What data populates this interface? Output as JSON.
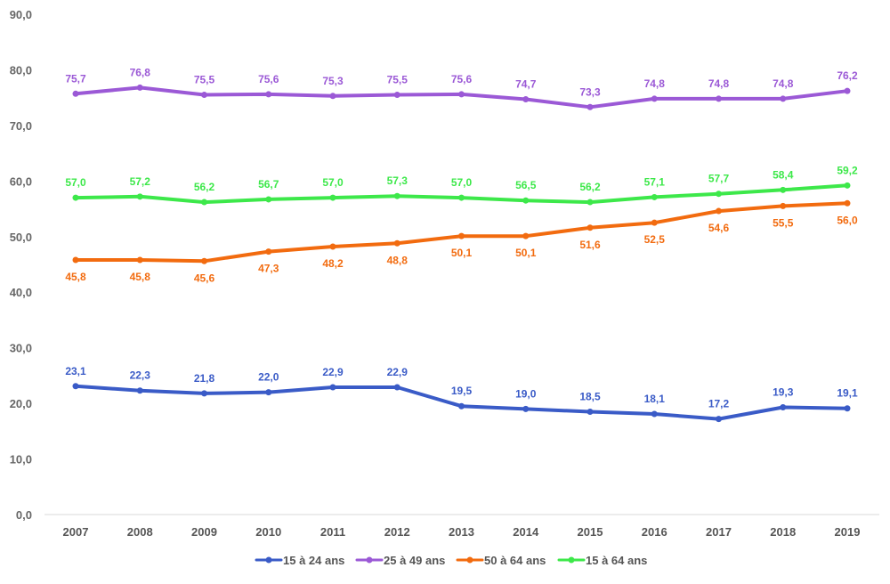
{
  "chart_data": {
    "type": "line",
    "title": "",
    "xlabel": "",
    "ylabel": "",
    "ylim": [
      0,
      90
    ],
    "yticks": [
      "0,0",
      "10,0",
      "20,0",
      "30,0",
      "40,0",
      "50,0",
      "60,0",
      "70,0",
      "80,0",
      "90,0"
    ],
    "x": [
      "2007",
      "2008",
      "2009",
      "2010",
      "2011",
      "2012",
      "2013",
      "2014",
      "2015",
      "2016",
      "2017",
      "2018",
      "2019"
    ],
    "legend_position": "bottom",
    "grid": false,
    "series": [
      {
        "name": "15 à 24 ans",
        "color": "#3a5bc7",
        "label_position": "above",
        "values": [
          23.1,
          22.3,
          21.8,
          22.0,
          22.9,
          22.9,
          19.5,
          19.0,
          18.5,
          18.1,
          17.2,
          19.3,
          19.1
        ],
        "labels": [
          "23,1",
          "22,3",
          "21,8",
          "22,0",
          "22,9",
          "22,9",
          "19,5",
          "19,0",
          "18,5",
          "18,1",
          "17,2",
          "19,3",
          "19,1"
        ]
      },
      {
        "name": "25 à 49 ans",
        "color": "#9b59d6",
        "label_position": "above",
        "values": [
          75.7,
          76.8,
          75.5,
          75.6,
          75.3,
          75.5,
          75.6,
          74.7,
          73.3,
          74.8,
          74.8,
          74.8,
          76.2
        ],
        "labels": [
          "75,7",
          "76,8",
          "75,5",
          "75,6",
          "75,3",
          "75,5",
          "75,6",
          "74,7",
          "73,3",
          "74,8",
          "74,8",
          "74,8",
          "76,2"
        ]
      },
      {
        "name": "50 à 64 ans",
        "color": "#f26b0f",
        "label_position": "below",
        "values": [
          45.8,
          45.8,
          45.6,
          47.3,
          48.2,
          48.8,
          50.1,
          50.1,
          51.6,
          52.5,
          54.6,
          55.5,
          56.0
        ],
        "labels": [
          "45,8",
          "45,8",
          "45,6",
          "47,3",
          "48,2",
          "48,8",
          "50,1",
          "50,1",
          "51,6",
          "52,5",
          "54,6",
          "55,5",
          "56,0"
        ]
      },
      {
        "name": "15 à 64 ans",
        "color": "#3de84a",
        "label_position": "above",
        "values": [
          57.0,
          57.2,
          56.2,
          56.7,
          57.0,
          57.3,
          57.0,
          56.5,
          56.2,
          57.1,
          57.7,
          58.4,
          59.2
        ],
        "labels": [
          "57,0",
          "57,2",
          "56,2",
          "56,7",
          "57,0",
          "57,3",
          "57,0",
          "56,5",
          "56,2",
          "57,1",
          "57,7",
          "58,4",
          "59,2"
        ]
      }
    ]
  }
}
